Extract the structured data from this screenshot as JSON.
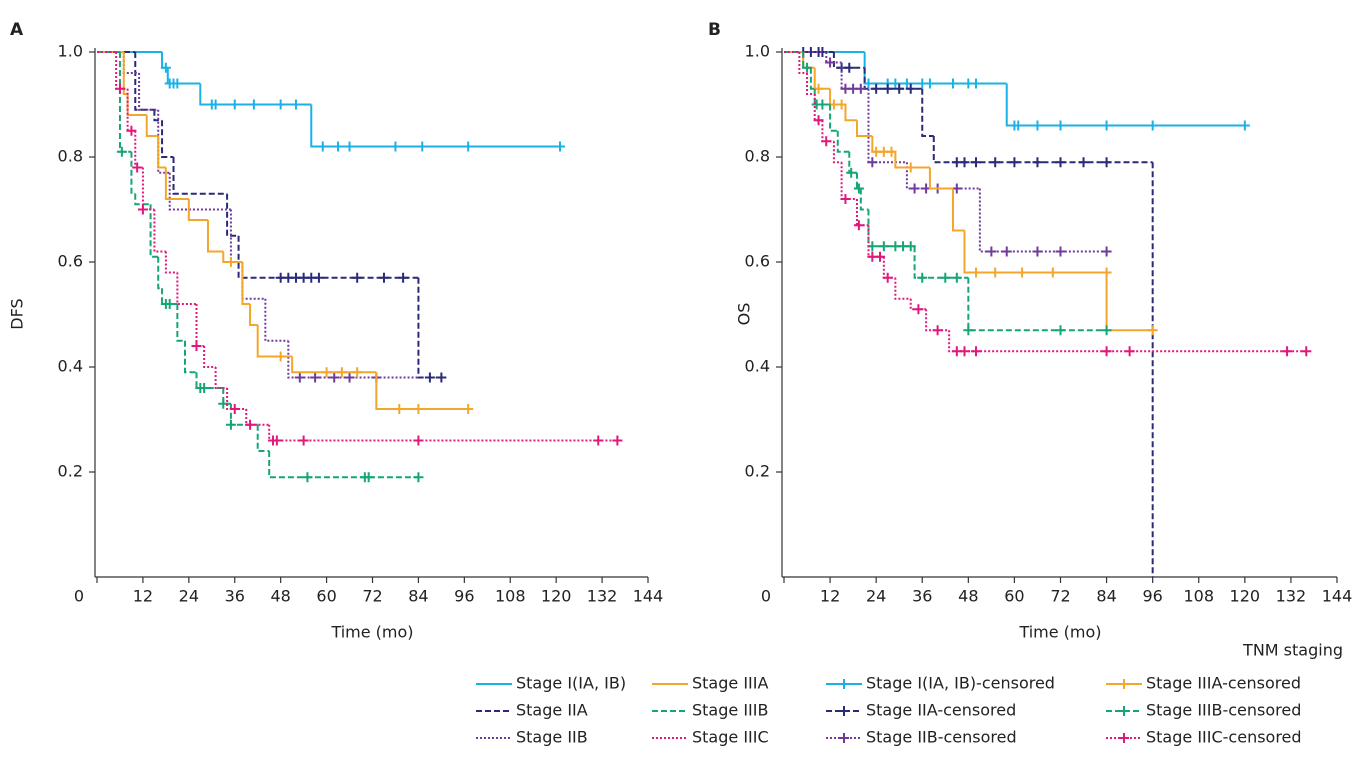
{
  "legend": {
    "title": "TNM staging",
    "items": [
      {
        "name": "Stage I(IA, IB)",
        "color": "#1ab2e6",
        "dash": "solid",
        "censored": false
      },
      {
        "name": "Stage IIA",
        "color": "#2b2a78",
        "dash": "dashed",
        "censored": false
      },
      {
        "name": "Stage IIB",
        "color": "#6f3a9c",
        "dash": "dotted",
        "censored": false
      },
      {
        "name": "Stage IIIA",
        "color": "#f4a62a",
        "dash": "solid",
        "censored": false
      },
      {
        "name": "Stage IIIB",
        "color": "#16a574",
        "dash": "dashed",
        "censored": false
      },
      {
        "name": "Stage IIIC",
        "color": "#e2177b",
        "dash": "dotted",
        "censored": false
      },
      {
        "name": "Stage I(IA, IB)-censored",
        "color": "#1ab2e6",
        "dash": "solid",
        "censored": true
      },
      {
        "name": "Stage IIA-censored",
        "color": "#2b2a78",
        "dash": "dashed",
        "censored": true
      },
      {
        "name": "Stage IIB-censored",
        "color": "#6f3a9c",
        "dash": "dotted",
        "censored": true
      },
      {
        "name": "Stage IIIA-censored",
        "color": "#f4a62a",
        "dash": "solid",
        "censored": true
      },
      {
        "name": "Stage IIIB-censored",
        "color": "#16a574",
        "dash": "dashed",
        "censored": true
      },
      {
        "name": "Stage IIIC-censored",
        "color": "#e2177b",
        "dash": "dotted",
        "censored": true
      }
    ]
  },
  "chart_data": [
    {
      "type": "step",
      "title": "A",
      "ylabel": "DFS",
      "xlabel": "Time (mo)",
      "xlim": [
        0,
        144
      ],
      "xticks": [
        0,
        12,
        24,
        36,
        48,
        60,
        72,
        84,
        96,
        108,
        120,
        132,
        144
      ],
      "ylim": [
        0,
        1
      ],
      "yticks": [
        0.2,
        0.4,
        0.6,
        0.8,
        {
          "value": 1,
          "label": "1.0"
        }
      ],
      "series": [
        {
          "color": "#1ab2e6",
          "dash": "solid",
          "x": [
            0,
            17,
            18.5,
            27,
            56,
            121
          ],
          "values": [
            1,
            0.97,
            0.94,
            0.9,
            0.82,
            0.82
          ],
          "censor_x": [
            18,
            19,
            20,
            21,
            30,
            31,
            36,
            41,
            48,
            52,
            59,
            63,
            66,
            78,
            85,
            97,
            121
          ],
          "censor_values": [
            0.97,
            0.94,
            0.94,
            0.94,
            0.9,
            0.9,
            0.9,
            0.9,
            0.9,
            0.9,
            0.82,
            0.82,
            0.82,
            0.82,
            0.82,
            0.82,
            0.82
          ]
        },
        {
          "color": "#2b2a78",
          "dash": "dashed",
          "x": [
            0,
            10,
            15,
            17,
            20,
            34,
            37,
            84,
            90
          ],
          "values": [
            1,
            0.89,
            0.87,
            0.8,
            0.73,
            0.65,
            0.57,
            0.38,
            0.38
          ],
          "censor_x": [
            48,
            50,
            52,
            54,
            56,
            58,
            68,
            75,
            80,
            87,
            90
          ],
          "censor_values": [
            0.57,
            0.57,
            0.57,
            0.57,
            0.57,
            0.57,
            0.57,
            0.57,
            0.57,
            0.38,
            0.38
          ]
        },
        {
          "color": "#6f3a9c",
          "dash": "dotted",
          "x": [
            0,
            7,
            11,
            16,
            19,
            35,
            38,
            44,
            50,
            84
          ],
          "values": [
            1,
            0.96,
            0.89,
            0.77,
            0.7,
            0.6,
            0.53,
            0.45,
            0.38,
            0.38
          ],
          "censor_x": [
            53,
            57,
            62,
            66,
            73
          ],
          "censor_values": [
            0.38,
            0.38,
            0.38,
            0.38,
            0.38
          ]
        },
        {
          "color": "#f4a62a",
          "dash": "solid",
          "x": [
            0,
            7,
            8,
            13,
            16,
            18,
            24,
            29,
            33,
            38,
            40,
            42,
            51,
            73,
            97
          ],
          "values": [
            1,
            0.92,
            0.88,
            0.84,
            0.78,
            0.72,
            0.68,
            0.62,
            0.6,
            0.52,
            0.48,
            0.42,
            0.39,
            0.32,
            0.32
          ],
          "censor_x": [
            35,
            48,
            60,
            64,
            68,
            79,
            84,
            97
          ],
          "censor_values": [
            0.6,
            0.42,
            0.39,
            0.39,
            0.39,
            0.32,
            0.32,
            0.32
          ]
        },
        {
          "color": "#16a574",
          "dash": "dashed",
          "x": [
            0,
            6,
            9,
            10,
            14,
            16,
            17,
            21,
            23,
            26,
            33,
            35,
            42,
            45,
            84
          ],
          "values": [
            1,
            0.81,
            0.73,
            0.71,
            0.61,
            0.55,
            0.52,
            0.45,
            0.39,
            0.36,
            0.33,
            0.29,
            0.24,
            0.19,
            0.19
          ],
          "censor_x": [
            6.5,
            18,
            19,
            27,
            28,
            33,
            35,
            55,
            70,
            71,
            84
          ],
          "censor_values": [
            0.81,
            0.52,
            0.52,
            0.36,
            0.36,
            0.33,
            0.29,
            0.19,
            0.19,
            0.19,
            0.19
          ]
        },
        {
          "color": "#e2177b",
          "dash": "dotted",
          "x": [
            0,
            5,
            8,
            10,
            12,
            15,
            18,
            21,
            26,
            28,
            31,
            34,
            39,
            45,
            136
          ],
          "values": [
            1,
            0.93,
            0.85,
            0.78,
            0.7,
            0.62,
            0.58,
            0.52,
            0.44,
            0.4,
            0.36,
            0.32,
            0.29,
            0.26,
            0.26
          ],
          "censor_x": [
            6,
            9,
            10.5,
            12,
            26,
            36,
            40,
            46,
            47,
            54,
            84,
            131,
            136
          ],
          "censor_values": [
            0.93,
            0.85,
            0.78,
            0.7,
            0.44,
            0.32,
            0.29,
            0.26,
            0.26,
            0.26,
            0.26,
            0.26,
            0.26
          ]
        }
      ]
    },
    {
      "type": "step",
      "title": "B",
      "ylabel": "OS",
      "xlabel": "Time (mo)",
      "xlim": [
        0,
        144
      ],
      "xticks": [
        0,
        12,
        24,
        36,
        48,
        60,
        72,
        84,
        96,
        108,
        120,
        132,
        144
      ],
      "ylim": [
        0,
        1
      ],
      "yticks": [
        0.2,
        0.4,
        0.6,
        0.8,
        {
          "value": 1,
          "label": "1.0"
        }
      ],
      "series": [
        {
          "color": "#1ab2e6",
          "dash": "solid",
          "x": [
            0,
            21,
            58,
            120
          ],
          "values": [
            1,
            0.94,
            0.86,
            0.86
          ],
          "censor_x": [
            22,
            27,
            29,
            32,
            36,
            38,
            44,
            48,
            50,
            60,
            61,
            66,
            72,
            84,
            96,
            120
          ],
          "censor_values": [
            0.94,
            0.94,
            0.94,
            0.94,
            0.94,
            0.94,
            0.94,
            0.94,
            0.94,
            0.86,
            0.86,
            0.86,
            0.86,
            0.86,
            0.86,
            0.86
          ]
        },
        {
          "color": "#2b2a78",
          "dash": "dashed",
          "x": [
            0,
            13,
            21,
            36,
            39,
            96
          ],
          "values": [
            1,
            0.97,
            0.93,
            0.84,
            0.79,
            0
          ],
          "censor_x": [
            5,
            7,
            9,
            10,
            15,
            17,
            24,
            27,
            30,
            33,
            45,
            47,
            50,
            55,
            60,
            66,
            72,
            78,
            84
          ],
          "censor_values": [
            1,
            1,
            1,
            1,
            0.97,
            0.97,
            0.93,
            0.93,
            0.93,
            0.93,
            0.79,
            0.79,
            0.79,
            0.79,
            0.79,
            0.79,
            0.79,
            0.79,
            0.79
          ]
        },
        {
          "color": "#6f3a9c",
          "dash": "dotted",
          "x": [
            0,
            11,
            15,
            22,
            32,
            51,
            84
          ],
          "values": [
            1,
            0.98,
            0.93,
            0.79,
            0.74,
            0.62,
            0.62
          ],
          "censor_x": [
            12,
            16,
            18,
            20,
            23,
            34,
            37,
            40,
            45,
            54,
            58,
            66,
            72,
            84
          ],
          "censor_values": [
            0.98,
            0.93,
            0.93,
            0.93,
            0.79,
            0.74,
            0.74,
            0.74,
            0.74,
            0.62,
            0.62,
            0.62,
            0.62,
            0.62
          ]
        },
        {
          "color": "#f4a62a",
          "dash": "solid",
          "x": [
            0,
            5,
            8,
            12,
            16,
            19,
            23,
            29,
            38,
            44,
            47,
            84,
            96
          ],
          "values": [
            1,
            0.97,
            0.93,
            0.9,
            0.87,
            0.84,
            0.81,
            0.78,
            0.74,
            0.66,
            0.58,
            0.47,
            0.47
          ],
          "censor_x": [
            9,
            13,
            15,
            24,
            26,
            28,
            33,
            50,
            55,
            62,
            70,
            84,
            96
          ],
          "censor_values": [
            0.93,
            0.9,
            0.9,
            0.81,
            0.81,
            0.81,
            0.78,
            0.58,
            0.58,
            0.58,
            0.58,
            0.58,
            0.47
          ]
        },
        {
          "color": "#16a574",
          "dash": "dashed",
          "x": [
            0,
            5,
            7,
            8,
            12,
            14,
            17,
            19,
            20,
            22,
            34,
            48,
            84
          ],
          "values": [
            1,
            0.97,
            0.93,
            0.9,
            0.85,
            0.81,
            0.77,
            0.74,
            0.7,
            0.63,
            0.57,
            0.47,
            0.47
          ],
          "censor_x": [
            6,
            8.5,
            10,
            17.5,
            19.5,
            23,
            26,
            29,
            31,
            33,
            36,
            42,
            45,
            48,
            72,
            84
          ],
          "censor_values": [
            0.97,
            0.9,
            0.9,
            0.77,
            0.74,
            0.63,
            0.63,
            0.63,
            0.63,
            0.63,
            0.57,
            0.57,
            0.57,
            0.47,
            0.47,
            0.47
          ]
        },
        {
          "color": "#e2177b",
          "dash": "dotted",
          "x": [
            0,
            4,
            6,
            8,
            10,
            13,
            15,
            19,
            22,
            26,
            29,
            33,
            37,
            43,
            136
          ],
          "values": [
            1,
            0.96,
            0.92,
            0.87,
            0.83,
            0.79,
            0.72,
            0.67,
            0.61,
            0.57,
            0.53,
            0.51,
            0.47,
            0.43,
            0.43
          ],
          "censor_x": [
            9,
            11,
            16,
            19.5,
            23,
            25,
            27,
            35,
            40,
            45,
            47,
            50,
            84,
            90,
            131,
            136
          ],
          "censor_values": [
            0.87,
            0.83,
            0.72,
            0.67,
            0.61,
            0.61,
            0.57,
            0.51,
            0.47,
            0.43,
            0.43,
            0.43,
            0.43,
            0.43,
            0.43,
            0.43
          ]
        }
      ]
    }
  ]
}
